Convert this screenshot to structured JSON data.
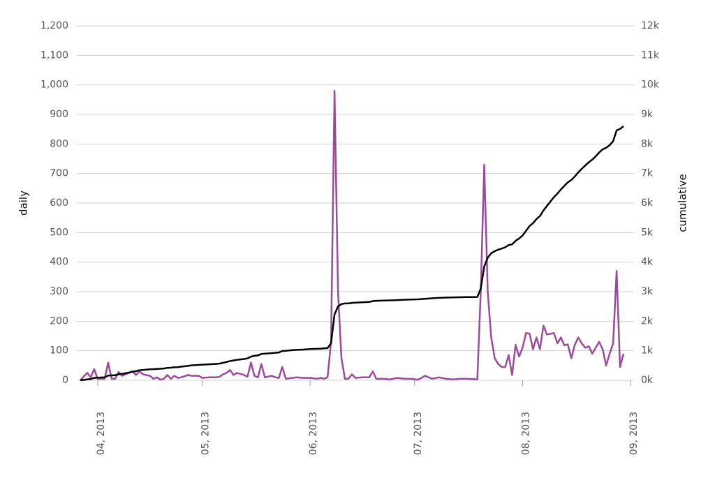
{
  "chart_data": {
    "type": "line",
    "y_label": "daily",
    "y2_label": "cumulative",
    "x": [
      86,
      88,
      89,
      90,
      91,
      93,
      94,
      95,
      96,
      97,
      98,
      100,
      101,
      102,
      103,
      104,
      106,
      107,
      108,
      109,
      110,
      111,
      112,
      113,
      114,
      115,
      117,
      118,
      120,
      121,
      123,
      125,
      126,
      127,
      128,
      129,
      130,
      131,
      133,
      134,
      135,
      136,
      137,
      138,
      139,
      141,
      142,
      143,
      144,
      145,
      147,
      148,
      150,
      152,
      154,
      155,
      156,
      157,
      158,
      159,
      160,
      161,
      162,
      163,
      164,
      165,
      167,
      169,
      170,
      171,
      173,
      175,
      177,
      179,
      181,
      183,
      185,
      187,
      189,
      191,
      193,
      195,
      197,
      200,
      201,
      202,
      203,
      204,
      205,
      206,
      207,
      208,
      209,
      210,
      211,
      212,
      213,
      214,
      215,
      216,
      217,
      218,
      219,
      220,
      222,
      223,
      224,
      225,
      226,
      227,
      228,
      229,
      230,
      231,
      232,
      233,
      234,
      235,
      236,
      237,
      238,
      239,
      240,
      241,
      242
    ],
    "series": [
      {
        "name": "daily",
        "color": "#9b4a9e",
        "axis": "y",
        "values": [
          0,
          25,
          10,
          38,
          5,
          5,
          60,
          5,
          5,
          28,
          15,
          25,
          30,
          18,
          30,
          20,
          15,
          5,
          10,
          2,
          5,
          18,
          5,
          15,
          8,
          10,
          18,
          15,
          15,
          8,
          10,
          10,
          12,
          20,
          25,
          35,
          18,
          25,
          18,
          12,
          60,
          15,
          10,
          55,
          10,
          15,
          10,
          8,
          45,
          5,
          8,
          10,
          8,
          8,
          5,
          8,
          5,
          10,
          130,
          980,
          300,
          75,
          5,
          5,
          20,
          8,
          10,
          10,
          30,
          5,
          5,
          3,
          8,
          5,
          5,
          2,
          15,
          5,
          10,
          5,
          3,
          5,
          5,
          3,
          300,
          730,
          300,
          145,
          75,
          55,
          45,
          45,
          85,
          18,
          120,
          80,
          110,
          160,
          158,
          105,
          145,
          105,
          185,
          155,
          160,
          125,
          145,
          118,
          122,
          75,
          120,
          145,
          125,
          110,
          115,
          90,
          110,
          130,
          105,
          50,
          90,
          125,
          370,
          45,
          90
        ]
      },
      {
        "name": "cumulative",
        "color": "#000000",
        "axis": "y2",
        "values": [
          0,
          30,
          40,
          80,
          90,
          100,
          160,
          165,
          170,
          200,
          215,
          260,
          290,
          310,
          340,
          350,
          370,
          375,
          385,
          390,
          400,
          420,
          425,
          440,
          445,
          460,
          490,
          505,
          520,
          530,
          540,
          555,
          565,
          590,
          620,
          650,
          670,
          690,
          720,
          740,
          800,
          830,
          840,
          890,
          900,
          920,
          930,
          940,
          990,
          1000,
          1020,
          1030,
          1040,
          1055,
          1065,
          1070,
          1080,
          1090,
          1250,
          2230,
          2500,
          2580,
          2600,
          2600,
          2620,
          2630,
          2640,
          2650,
          2680,
          2690,
          2700,
          2705,
          2715,
          2725,
          2735,
          2740,
          2760,
          2775,
          2790,
          2800,
          2805,
          2810,
          2815,
          2820,
          3100,
          3850,
          4150,
          4300,
          4370,
          4420,
          4460,
          4500,
          4580,
          4600,
          4720,
          4800,
          4900,
          5060,
          5220,
          5320,
          5460,
          5560,
          5750,
          5900,
          6200,
          6320,
          6460,
          6580,
          6700,
          6780,
          6900,
          7040,
          7160,
          7270,
          7380,
          7470,
          7580,
          7710,
          7820,
          7870,
          7960,
          8090,
          8460,
          8510,
          8600
        ]
      }
    ],
    "xlim": [
      85,
      245
    ],
    "xticks": [
      {
        "value": 91,
        "label": "04, 2013"
      },
      {
        "value": 121,
        "label": "05, 2013"
      },
      {
        "value": 152,
        "label": "06, 2013"
      },
      {
        "value": 182,
        "label": "07, 2013"
      },
      {
        "value": 213,
        "label": "08, 2013"
      },
      {
        "value": 244,
        "label": "09, 2013"
      }
    ],
    "ylim": [
      0,
      1200
    ],
    "yticks": [
      0,
      100,
      200,
      300,
      400,
      500,
      600,
      700,
      800,
      900,
      {
        "value": 1000,
        "label": "1,000"
      },
      {
        "value": 1100,
        "label": "1,100"
      },
      {
        "value": 1200,
        "label": "1,200"
      }
    ],
    "y2lim": [
      0,
      12000
    ],
    "y2ticks": [
      {
        "value": 0,
        "label": "0k"
      },
      {
        "value": 1000,
        "label": "1k"
      },
      {
        "value": 2000,
        "label": "2k"
      },
      {
        "value": 3000,
        "label": "3k"
      },
      {
        "value": 4000,
        "label": "4k"
      },
      {
        "value": 5000,
        "label": "5k"
      },
      {
        "value": 6000,
        "label": "6k"
      },
      {
        "value": 7000,
        "label": "7k"
      },
      {
        "value": 8000,
        "label": "8k"
      },
      {
        "value": 9000,
        "label": "9k"
      },
      {
        "value": 10000,
        "label": "10k"
      },
      {
        "value": 11000,
        "label": "11k"
      },
      {
        "value": 12000,
        "label": "12k"
      }
    ],
    "grid": true
  }
}
